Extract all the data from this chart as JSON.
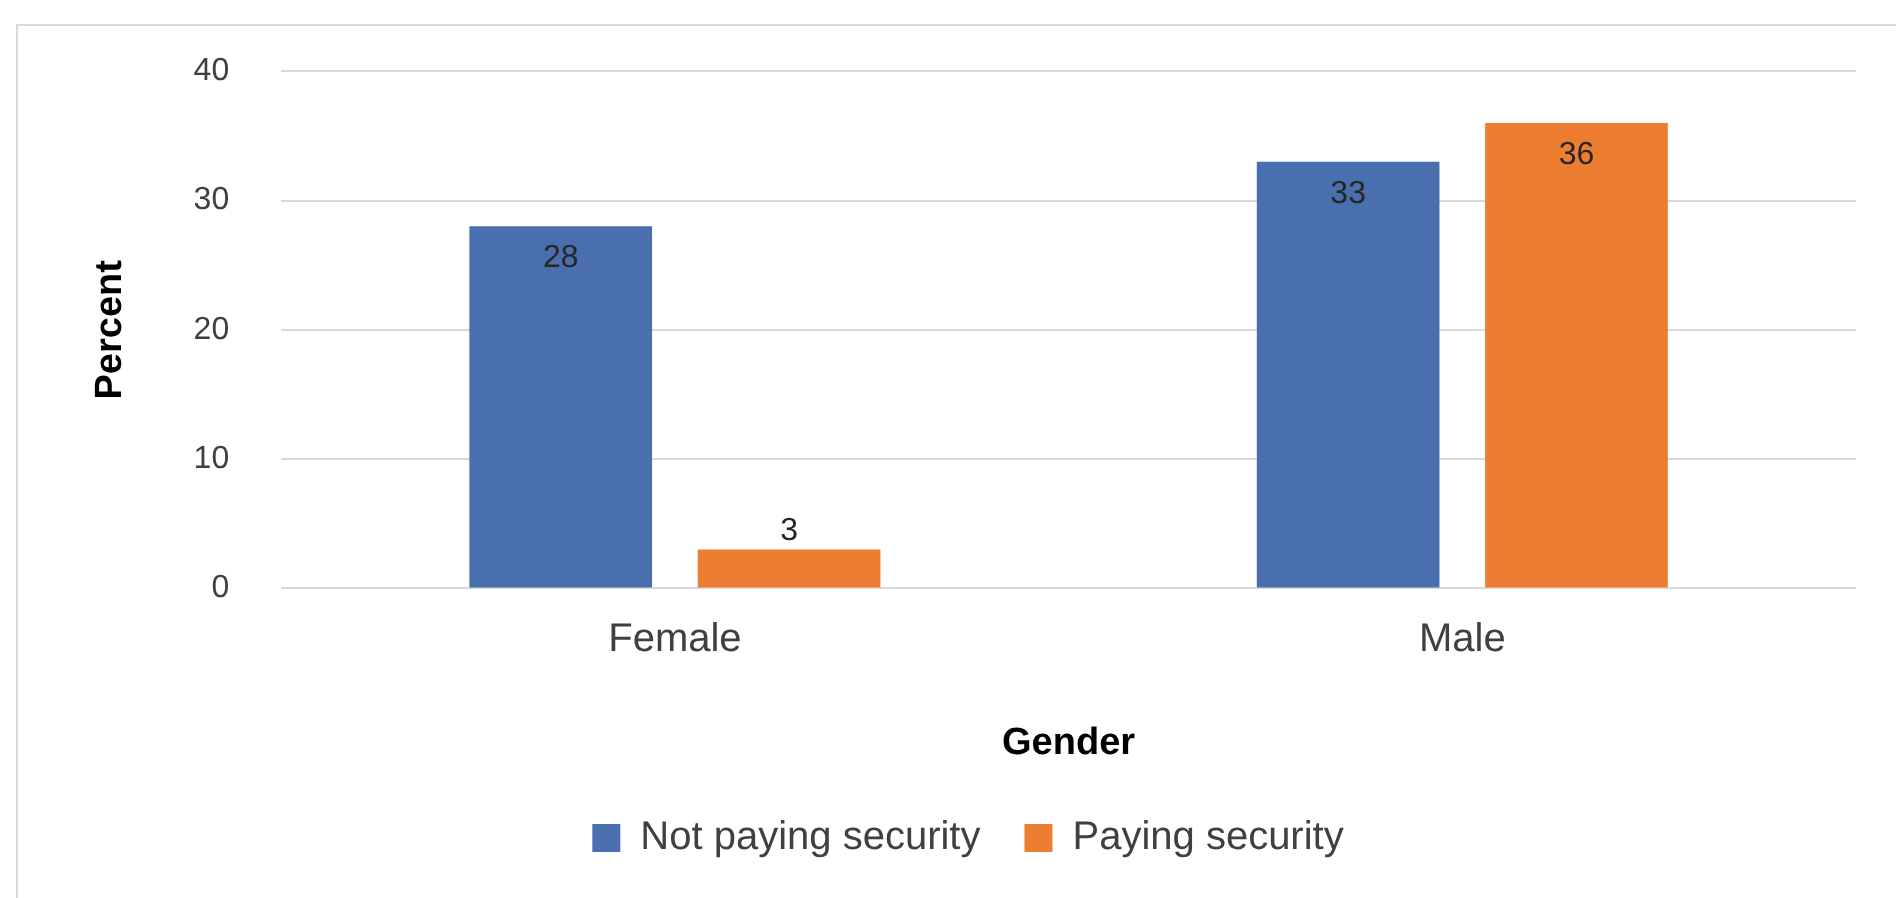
{
  "chart_data": {
    "type": "bar",
    "xlabel": "Gender",
    "ylabel": "Percent",
    "categories": [
      "Female",
      "Male"
    ],
    "series": [
      {
        "name": "Not paying security",
        "color": "#4a6fae",
        "values": [
          28,
          33
        ]
      },
      {
        "name": "Paying security",
        "color": "#ed7d31",
        "values": [
          3,
          36
        ]
      }
    ],
    "ylim": [
      0,
      40
    ],
    "yticks": [
      0,
      10,
      20,
      30,
      40
    ],
    "grid": "y",
    "legend": "bottom",
    "data_labels": true
  }
}
